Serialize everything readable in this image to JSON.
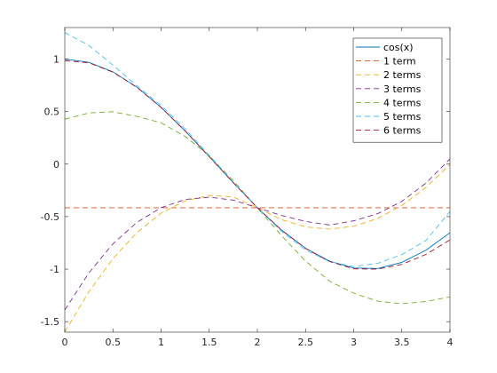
{
  "chart_data": {
    "type": "line",
    "title": "",
    "xlabel": "",
    "ylabel": "",
    "xlim": [
      0,
      4
    ],
    "ylim": [
      -1.6,
      1.3
    ],
    "xticks": [
      0,
      0.5,
      1,
      1.5,
      2,
      2.5,
      3,
      3.5,
      4
    ],
    "xtick_labels": [
      "0",
      "0.5",
      "1",
      "1.5",
      "2",
      "2.5",
      "3",
      "3.5",
      "4"
    ],
    "yticks": [
      -1.5,
      -1,
      -0.5,
      0,
      0.5,
      1
    ],
    "ytick_labels": [
      "-1.5",
      "-1",
      "-0.5",
      "0",
      "0.5",
      "1"
    ],
    "grid": false,
    "legend_position": "top-right",
    "x": [
      0,
      0.25,
      0.5,
      0.75,
      1,
      1.25,
      1.5,
      1.75,
      2,
      2.25,
      2.5,
      2.75,
      3,
      3.25,
      3.5,
      3.75,
      4
    ],
    "series": [
      {
        "name": "cos(x)",
        "color": "#0072bd",
        "dash": "solid",
        "values": [
          1,
          0.969,
          0.878,
          0.732,
          0.54,
          0.315,
          0.071,
          -0.178,
          -0.416,
          -0.628,
          -0.801,
          -0.924,
          -0.99,
          -0.994,
          -0.936,
          -0.82,
          -0.654
        ]
      },
      {
        "name": "1 term",
        "color": "#d95319",
        "dash": "dashed",
        "values": [
          -0.416,
          -0.416,
          -0.416,
          -0.416,
          -0.416,
          -0.416,
          -0.416,
          -0.416,
          -0.416,
          -0.416,
          -0.416,
          -0.416,
          -0.416,
          -0.416,
          -0.416,
          -0.416,
          -0.416
        ]
      },
      {
        "name": "2 terms",
        "color": "#edb120",
        "dash": "dashed",
        "values": [
          -1.597,
          -1.216,
          -0.9,
          -0.651,
          -0.467,
          -0.35,
          -0.298,
          -0.313,
          -0.416,
          -0.529,
          -0.598,
          -0.619,
          -0.592,
          -0.517,
          -0.394,
          -0.223,
          -0.004
        ]
      },
      {
        "name": "3 terms",
        "color": "#7e2f8e",
        "dash": "dashed",
        "values": [
          -1.389,
          -1.036,
          -0.759,
          -0.554,
          -0.415,
          -0.337,
          -0.315,
          -0.343,
          -0.416,
          -0.489,
          -0.546,
          -0.58,
          -0.54,
          -0.472,
          -0.355,
          -0.182,
          0.049
        ]
      },
      {
        "name": "4 terms",
        "color": "#77ac30",
        "dash": "dashed",
        "values": [
          0.428,
          0.487,
          0.498,
          0.454,
          0.393,
          0.263,
          0.08,
          -0.158,
          -0.416,
          -0.68,
          -0.923,
          -1.115,
          -1.229,
          -1.305,
          -1.33,
          -1.308,
          -1.265
        ]
      },
      {
        "name": "5 terms",
        "color": "#4dbeee",
        "dash": "dashed",
        "values": [
          1.252,
          1.13,
          0.942,
          0.745,
          0.559,
          0.335,
          0.083,
          -0.172,
          -0.416,
          -0.64,
          -0.818,
          -0.929,
          -0.976,
          -0.945,
          -0.862,
          -0.728,
          -0.45
        ]
      },
      {
        "name": "6 terms",
        "color": "#a2142f",
        "dash": "dashed",
        "values": [
          0.985,
          0.965,
          0.875,
          0.73,
          0.54,
          0.316,
          0.07,
          -0.177,
          -0.416,
          -0.628,
          -0.803,
          -0.928,
          -0.997,
          -1.0,
          -0.955,
          -0.86,
          -0.722
        ]
      }
    ]
  }
}
